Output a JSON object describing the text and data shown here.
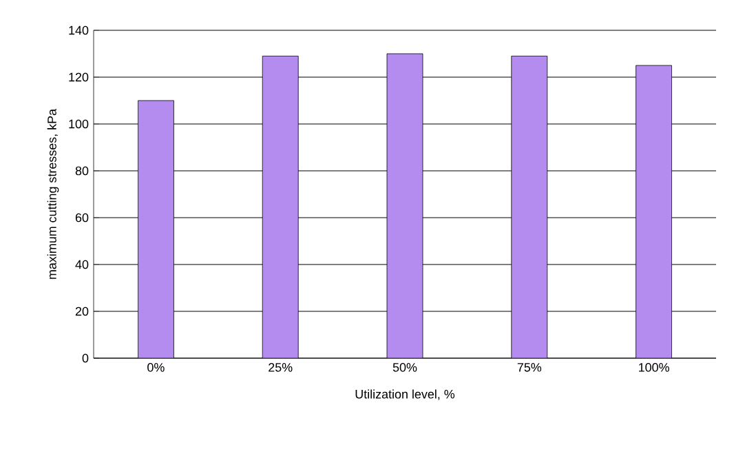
{
  "chart_data": {
    "type": "bar",
    "xlabel": "Utilization level, %",
    "ylabel": "maximum cutting stresses, kPa",
    "categories": [
      "0%",
      "25%",
      "50%",
      "75%",
      "100%"
    ],
    "values": [
      110,
      129,
      130,
      129,
      125
    ],
    "color": "#b48cf0",
    "ylim": [
      0,
      140
    ],
    "yticks": [
      0,
      20,
      40,
      60,
      80,
      100,
      120,
      140
    ],
    "grid": "y"
  }
}
